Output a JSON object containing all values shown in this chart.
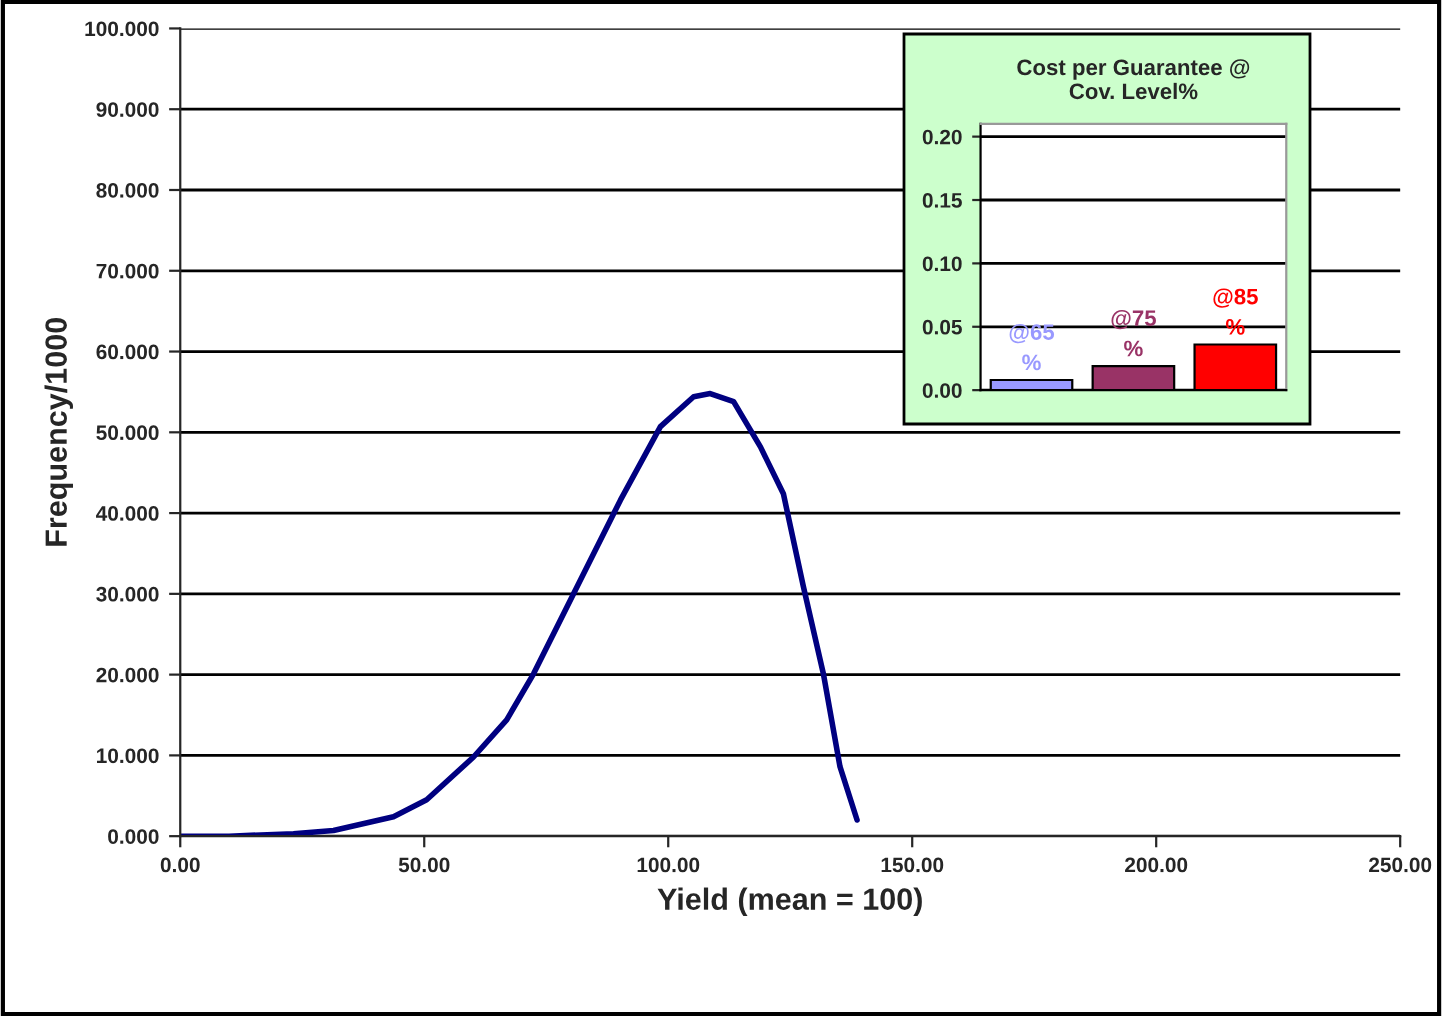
{
  "chart_data": [
    {
      "type": "line",
      "xlabel": "Yield (mean = 100)",
      "ylabel": "Frequency/1000",
      "series": [
        {
          "color": "#000080",
          "x": [
            0,
            10,
            23.2,
            31.4,
            43.7,
            50.5,
            60.1,
            66.9,
            72.4,
            80.6,
            90.2,
            98.4,
            105.2,
            108.6,
            113.4,
            118.9,
            123.6,
            127.7,
            131.8,
            135.2,
            138.7
          ],
          "values": [
            0,
            0,
            0.3,
            0.7,
            2.4,
            4.5,
            9.8,
            14.4,
            20.1,
            30.0,
            41.6,
            50.7,
            54.4,
            54.8,
            53.8,
            48.2,
            42.4,
            30.9,
            20.1,
            8.6,
            2.0
          ]
        }
      ],
      "xlim": [
        0,
        250
      ],
      "xticks": [
        {
          "value": 0,
          "label": "0.00"
        },
        {
          "value": 50,
          "label": "50.00"
        },
        {
          "value": 100,
          "label": "100.00"
        },
        {
          "value": 150,
          "label": "150.00"
        },
        {
          "value": 200,
          "label": "200.00"
        },
        {
          "value": 250,
          "label": "250.00"
        }
      ],
      "ylim": [
        0,
        100
      ],
      "yticks": [
        {
          "value": 0,
          "label": "0.000"
        },
        {
          "value": 10,
          "label": "10.000"
        },
        {
          "value": 20,
          "label": "20.000"
        },
        {
          "value": 30,
          "label": "30.000"
        },
        {
          "value": 40,
          "label": "40.000"
        },
        {
          "value": 50,
          "label": "50.000"
        },
        {
          "value": 60,
          "label": "60.000"
        },
        {
          "value": 70,
          "label": "70.000"
        },
        {
          "value": 80,
          "label": "80.000"
        },
        {
          "value": 90,
          "label": "90.000"
        },
        {
          "value": 100,
          "label": "100.000"
        }
      ],
      "grid": "y",
      "legend": false,
      "marker": "none",
      "line_style": "solid"
    },
    {
      "type": "bar",
      "title": "Cost per Guarantee @\nCov. Level%",
      "categories": [
        "@65\n%",
        "@75\n%",
        "@85\n%"
      ],
      "values": [
        0.008,
        0.019,
        0.036
      ],
      "colors": [
        "#9999ff",
        "#993366",
        "#ff0000"
      ],
      "ylim": [
        0,
        0.21
      ],
      "yticks": [
        {
          "value": 0,
          "label": "0.00"
        },
        {
          "value": 0.05,
          "label": "0.05"
        },
        {
          "value": 0.1,
          "label": "0.10"
        },
        {
          "value": 0.15,
          "label": "0.15"
        },
        {
          "value": 0.2,
          "label": "0.20"
        }
      ],
      "grid": "y",
      "tick_labels": "y"
    }
  ]
}
